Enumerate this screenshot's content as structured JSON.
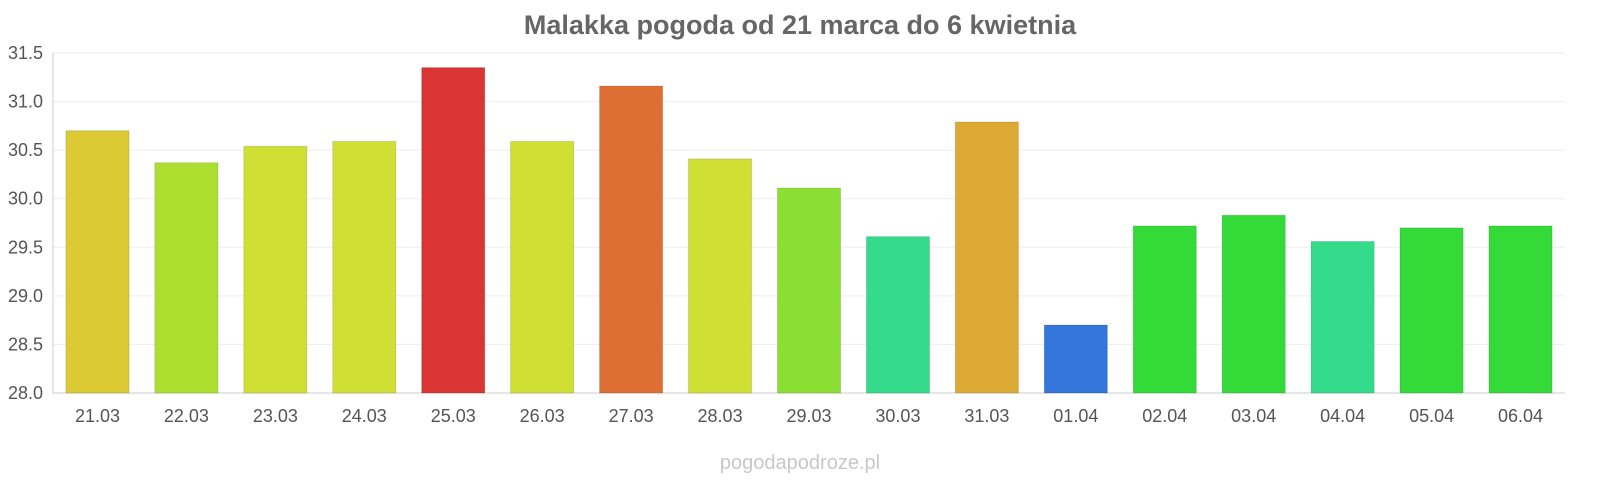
{
  "chart_data": {
    "type": "bar",
    "title": "Malakka pogoda od 21 marca do 6 kwietnia",
    "categories": [
      "21.03",
      "22.03",
      "23.03",
      "24.03",
      "25.03",
      "26.03",
      "27.03",
      "28.03",
      "29.03",
      "30.03",
      "31.03",
      "01.04",
      "02.04",
      "03.04",
      "04.04",
      "05.04",
      "06.04"
    ],
    "values": [
      30.7,
      30.37,
      30.54,
      30.59,
      31.35,
      30.59,
      31.16,
      30.41,
      30.11,
      29.61,
      30.79,
      28.7,
      29.72,
      29.83,
      29.56,
      29.7,
      29.72
    ],
    "colors": [
      "#dbca34",
      "#addf31",
      "#cfdf34",
      "#cfdf34",
      "#db3434",
      "#cfdf34",
      "#dd6f34",
      "#cfdf34",
      "#8ade34",
      "#34db8a",
      "#dcaa34",
      "#3476db",
      "#34db38",
      "#34db38",
      "#34db8a",
      "#34db38",
      "#34db38"
    ],
    "xlabel": "",
    "ylabel": "",
    "ylim": [
      28.0,
      31.5
    ],
    "yticks": [
      "28.0",
      "28.5",
      "29.0",
      "29.5",
      "30.0",
      "30.5",
      "31.0",
      "31.5"
    ],
    "grid": true,
    "legend": "none"
  },
  "watermark": "pogodapodroze.pl"
}
